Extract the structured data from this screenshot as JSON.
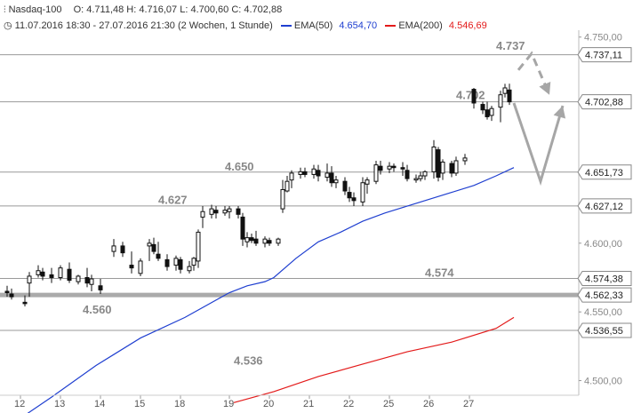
{
  "header": {
    "symbol": "Nasdaq-100",
    "ohlc": "O: 4.711,48  H: 4.716,07  L: 4.700,60  C: 4.702,88",
    "period": "11.07.2016 18:30 - 27.07.2016 21:30 (2 Wochen, 1 Stunde)",
    "ema50_label": "EMA(50)",
    "ema50_value": "4.654,70",
    "ema200_label": "EMA(200)",
    "ema200_value": "4.546,69"
  },
  "colors": {
    "ema50": "#1f3fd0",
    "ema200": "#e31a1a",
    "candle": "#111111",
    "level_line": "#999999",
    "support_band": "#aaaaaa",
    "arrow": "#a6a6a6",
    "annotation": "#888888"
  },
  "chart_data": {
    "type": "candlestick",
    "ylim": [
      4490,
      4755
    ],
    "x_ticks": [
      "12",
      "13",
      "14",
      "15",
      "18",
      "19",
      "20",
      "21",
      "22",
      "25",
      "26",
      "27"
    ],
    "y_axis_ticks": [
      {
        "value": 4750,
        "label": "4.750,00"
      },
      {
        "value": 4600,
        "label": "4.600,00"
      },
      {
        "value": 4550,
        "label": "4.550,00"
      },
      {
        "value": 4500,
        "label": "4.500,00"
      }
    ],
    "level_boxes": [
      {
        "value": 4737.11,
        "label": "4.737,11"
      },
      {
        "value": 4702.88,
        "label": "4.702,88"
      },
      {
        "value": 4651.73,
        "label": "4.651,73"
      },
      {
        "value": 4627.12,
        "label": "4.627,12"
      },
      {
        "value": 4574.38,
        "label": "4.574,38"
      },
      {
        "value": 4562.33,
        "label": "4.562,33"
      },
      {
        "value": 4536.55,
        "label": "4.536,55"
      }
    ],
    "horizontal_lines": [
      4737.11,
      4702.88,
      4651.73,
      4627.12,
      4574.38,
      4536.55
    ],
    "support_band": 4562.33,
    "annotations": [
      {
        "text": "4.737",
        "x": 110,
        "y": 4744
      },
      {
        "text": "4.702",
        "x": 101,
        "y": 4708
      },
      {
        "text": "4.650",
        "x": 49,
        "y": 4656
      },
      {
        "text": "4.627",
        "x": 34,
        "y": 4632
      },
      {
        "text": "4.574",
        "x": 94,
        "y": 4579
      },
      {
        "text": "4.560",
        "x": 17,
        "y": 4552
      },
      {
        "text": "4.536",
        "x": 51,
        "y": 4515
      }
    ],
    "candles": [
      {
        "x": 0,
        "o": 4565,
        "h": 4569,
        "l": 4561,
        "c": 4564
      },
      {
        "x": 1,
        "o": 4563,
        "h": 4567,
        "l": 4559,
        "c": 4561
      },
      {
        "x": 4,
        "o": 4557,
        "h": 4562,
        "l": 4554,
        "c": 4556
      },
      {
        "x": 5,
        "o": 4571,
        "h": 4579,
        "l": 4561,
        "c": 4576
      },
      {
        "x": 7,
        "o": 4577,
        "h": 4584,
        "l": 4575,
        "c": 4580
      },
      {
        "x": 8,
        "o": 4579,
        "h": 4582,
        "l": 4573,
        "c": 4576
      },
      {
        "x": 10,
        "o": 4577,
        "h": 4582,
        "l": 4571,
        "c": 4575
      },
      {
        "x": 12,
        "o": 4575,
        "h": 4584,
        "l": 4573,
        "c": 4582
      },
      {
        "x": 14,
        "o": 4581,
        "h": 4586,
        "l": 4571,
        "c": 4573
      },
      {
        "x": 16,
        "o": 4572,
        "h": 4577,
        "l": 4570,
        "c": 4576
      },
      {
        "x": 18,
        "o": 4575,
        "h": 4582,
        "l": 4568,
        "c": 4571
      },
      {
        "x": 19,
        "o": 4570,
        "h": 4577,
        "l": 4565,
        "c": 4574
      },
      {
        "x": 21,
        "o": 4569,
        "h": 4574,
        "l": 4563,
        "c": 4566
      },
      {
        "x": 24,
        "o": 4594,
        "h": 4603,
        "l": 4590,
        "c": 4598
      },
      {
        "x": 26,
        "o": 4598,
        "h": 4601,
        "l": 4590,
        "c": 4593
      },
      {
        "x": 28,
        "o": 4584,
        "h": 4594,
        "l": 4578,
        "c": 4582
      },
      {
        "x": 30,
        "o": 4578,
        "h": 4589,
        "l": 4576,
        "c": 4587
      },
      {
        "x": 32,
        "o": 4598,
        "h": 4603,
        "l": 4587,
        "c": 4600
      },
      {
        "x": 33,
        "o": 4599,
        "h": 4604,
        "l": 4592,
        "c": 4594
      },
      {
        "x": 34,
        "o": 4592,
        "h": 4601,
        "l": 4587,
        "c": 4589
      },
      {
        "x": 36,
        "o": 4588,
        "h": 4592,
        "l": 4580,
        "c": 4583
      },
      {
        "x": 38,
        "o": 4584,
        "h": 4591,
        "l": 4580,
        "c": 4589
      },
      {
        "x": 39,
        "o": 4588,
        "h": 4590,
        "l": 4578,
        "c": 4581
      },
      {
        "x": 41,
        "o": 4580,
        "h": 4587,
        "l": 4578,
        "c": 4583
      },
      {
        "x": 42,
        "o": 4584,
        "h": 4590,
        "l": 4580,
        "c": 4589
      },
      {
        "x": 43,
        "o": 4587,
        "h": 4610,
        "l": 4582,
        "c": 4608
      },
      {
        "x": 44,
        "o": 4619,
        "h": 4627,
        "l": 4611,
        "c": 4623
      },
      {
        "x": 46,
        "o": 4621,
        "h": 4628,
        "l": 4618,
        "c": 4625
      },
      {
        "x": 47,
        "o": 4624,
        "h": 4627,
        "l": 4618,
        "c": 4622
      },
      {
        "x": 49,
        "o": 4622,
        "h": 4627,
        "l": 4620,
        "c": 4624
      },
      {
        "x": 50,
        "o": 4623,
        "h": 4627,
        "l": 4618,
        "c": 4625
      },
      {
        "x": 52,
        "o": 4625,
        "h": 4627,
        "l": 4618,
        "c": 4621
      },
      {
        "x": 53,
        "o": 4619,
        "h": 4622,
        "l": 4598,
        "c": 4603
      },
      {
        "x": 54,
        "o": 4601,
        "h": 4608,
        "l": 4597,
        "c": 4604
      },
      {
        "x": 55,
        "o": 4604,
        "h": 4607,
        "l": 4600,
        "c": 4602
      },
      {
        "x": 56,
        "o": 4603,
        "h": 4609,
        "l": 4598,
        "c": 4600
      },
      {
        "x": 58,
        "o": 4600,
        "h": 4605,
        "l": 4597,
        "c": 4603
      },
      {
        "x": 59,
        "o": 4602,
        "h": 4604,
        "l": 4598,
        "c": 4600
      },
      {
        "x": 61,
        "o": 4600,
        "h": 4604,
        "l": 4598,
        "c": 4603
      },
      {
        "x": 62,
        "o": 4625,
        "h": 4646,
        "l": 4622,
        "c": 4639
      },
      {
        "x": 63,
        "o": 4638,
        "h": 4649,
        "l": 4637,
        "c": 4645
      },
      {
        "x": 64,
        "o": 4646,
        "h": 4653,
        "l": 4640,
        "c": 4651
      },
      {
        "x": 66,
        "o": 4650,
        "h": 4655,
        "l": 4647,
        "c": 4652
      },
      {
        "x": 67,
        "o": 4652,
        "h": 4655,
        "l": 4648,
        "c": 4650
      },
      {
        "x": 69,
        "o": 4650,
        "h": 4657,
        "l": 4647,
        "c": 4654
      },
      {
        "x": 70,
        "o": 4653,
        "h": 4657,
        "l": 4645,
        "c": 4649
      },
      {
        "x": 72,
        "o": 4648,
        "h": 4658,
        "l": 4645,
        "c": 4651
      },
      {
        "x": 73,
        "o": 4651,
        "h": 4656,
        "l": 4641,
        "c": 4644
      },
      {
        "x": 74,
        "o": 4644,
        "h": 4649,
        "l": 4640,
        "c": 4646
      },
      {
        "x": 76,
        "o": 4645,
        "h": 4648,
        "l": 4635,
        "c": 4638
      },
      {
        "x": 77,
        "o": 4637,
        "h": 4641,
        "l": 4630,
        "c": 4633
      },
      {
        "x": 78,
        "o": 4633,
        "h": 4637,
        "l": 4627,
        "c": 4631
      },
      {
        "x": 80,
        "o": 4630,
        "h": 4648,
        "l": 4627,
        "c": 4644
      },
      {
        "x": 81,
        "o": 4643,
        "h": 4648,
        "l": 4636,
        "c": 4646
      },
      {
        "x": 83,
        "o": 4645,
        "h": 4660,
        "l": 4643,
        "c": 4657
      },
      {
        "x": 84,
        "o": 4656,
        "h": 4660,
        "l": 4650,
        "c": 4653
      },
      {
        "x": 86,
        "o": 4654,
        "h": 4659,
        "l": 4651,
        "c": 4656
      },
      {
        "x": 87,
        "o": 4656,
        "h": 4658,
        "l": 4652,
        "c": 4655
      },
      {
        "x": 89,
        "o": 4655,
        "h": 4659,
        "l": 4649,
        "c": 4654
      },
      {
        "x": 90,
        "o": 4653,
        "h": 4657,
        "l": 4645,
        "c": 4647
      },
      {
        "x": 92,
        "o": 4646,
        "h": 4650,
        "l": 4644,
        "c": 4647
      },
      {
        "x": 93,
        "o": 4647,
        "h": 4652,
        "l": 4645,
        "c": 4649
      },
      {
        "x": 94,
        "o": 4649,
        "h": 4653,
        "l": 4646,
        "c": 4652
      },
      {
        "x": 96,
        "o": 4652,
        "h": 4675,
        "l": 4647,
        "c": 4670
      },
      {
        "x": 97,
        "o": 4668,
        "h": 4670,
        "l": 4645,
        "c": 4648
      },
      {
        "x": 98,
        "o": 4651,
        "h": 4661,
        "l": 4646,
        "c": 4659
      },
      {
        "x": 100,
        "o": 4658,
        "h": 4660,
        "l": 4648,
        "c": 4651
      },
      {
        "x": 101,
        "o": 4651,
        "h": 4663,
        "l": 4649,
        "c": 4660
      },
      {
        "x": 103,
        "o": 4660,
        "h": 4665,
        "l": 4657,
        "c": 4662
      },
      {
        "x": 105,
        "o": 4712,
        "h": 4713,
        "l": 4698,
        "c": 4702
      },
      {
        "x": 107,
        "o": 4701,
        "h": 4703,
        "l": 4694,
        "c": 4697
      },
      {
        "x": 108,
        "o": 4697,
        "h": 4703,
        "l": 4690,
        "c": 4692
      },
      {
        "x": 109,
        "o": 4693,
        "h": 4700,
        "l": 4689,
        "c": 4698
      },
      {
        "x": 111,
        "o": 4699,
        "h": 4711,
        "l": 4688,
        "c": 4708
      },
      {
        "x": 112,
        "o": 4709,
        "h": 4716,
        "l": 4706,
        "c": 4713
      },
      {
        "x": 113,
        "o": 4711.48,
        "h": 4716.07,
        "l": 4700.6,
        "c": 4702.88
      }
    ],
    "ema50": [
      [
        0,
        4466
      ],
      [
        10,
        4488
      ],
      [
        20,
        4511
      ],
      [
        30,
        4531
      ],
      [
        40,
        4546
      ],
      [
        50,
        4564
      ],
      [
        54,
        4569
      ],
      [
        58,
        4572
      ],
      [
        60,
        4575
      ],
      [
        65,
        4589
      ],
      [
        70,
        4601
      ],
      [
        75,
        4608
      ],
      [
        80,
        4616
      ],
      [
        85,
        4622
      ],
      [
        90,
        4627
      ],
      [
        95,
        4632
      ],
      [
        100,
        4637
      ],
      [
        105,
        4642
      ],
      [
        110,
        4649
      ],
      [
        114,
        4655
      ]
    ],
    "ema200": [
      [
        51,
        4484
      ],
      [
        60,
        4492
      ],
      [
        70,
        4503
      ],
      [
        80,
        4512
      ],
      [
        90,
        4521
      ],
      [
        100,
        4528
      ],
      [
        110,
        4538
      ],
      [
        114,
        4546
      ]
    ],
    "forecast": {
      "solid": [
        [
          114,
          4702
        ],
        [
          120,
          4645
        ],
        [
          125,
          4700
        ]
      ],
      "dashed": [
        [
          115,
          4726
        ],
        [
          118,
          4738
        ],
        [
          122,
          4708
        ]
      ]
    }
  }
}
